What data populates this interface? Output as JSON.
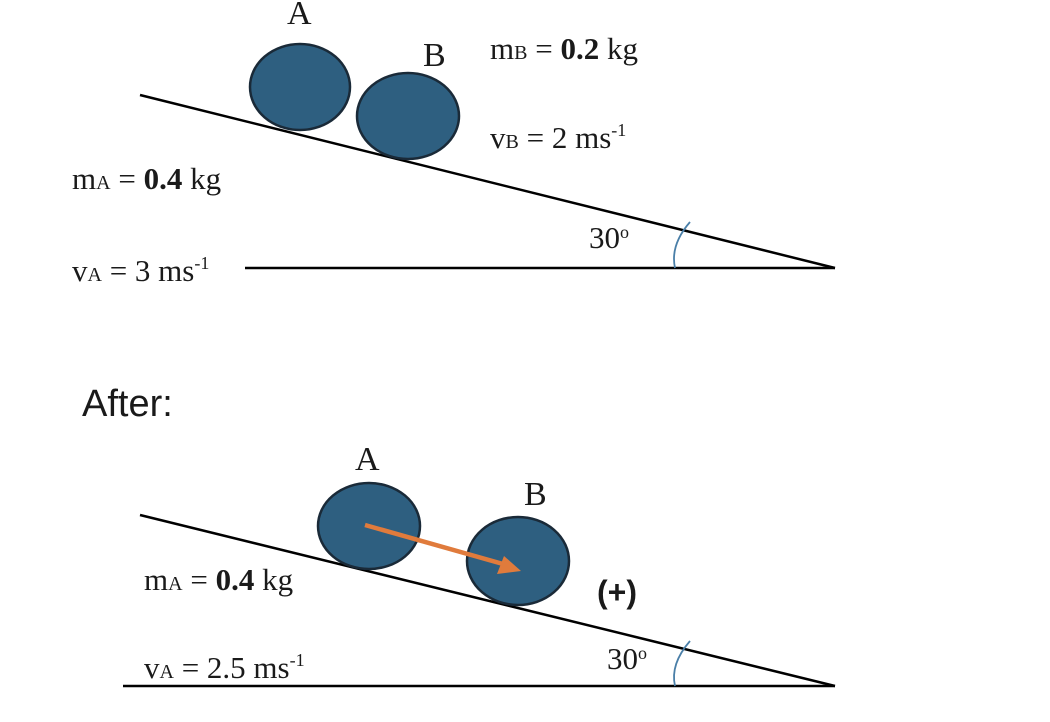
{
  "before": {
    "ball_a_label": "A",
    "ball_b_label": "B",
    "mass_b": {
      "symbol": "m",
      "subscript": "B",
      "equals": " = ",
      "value": "0.2",
      "unit": " kg"
    },
    "velocity_b": {
      "symbol": "v",
      "subscript": "B",
      "equals": " = 2 ms",
      "superscript": "-1"
    },
    "mass_a": {
      "symbol": "m",
      "subscript": "A",
      "equals": " = ",
      "value": "0.4",
      "unit": " kg"
    },
    "velocity_a": {
      "symbol": "v",
      "subscript": "A",
      "equals": " = 3 ms",
      "superscript": "-1"
    },
    "angle": {
      "value": "30",
      "degree": "o"
    }
  },
  "after_heading": "After:",
  "after": {
    "ball_a_label": "A",
    "ball_b_label": "B",
    "mass_a": {
      "symbol": "m",
      "subscript": "A",
      "equals": " = ",
      "value": "0.4",
      "unit": " kg"
    },
    "velocity_a": {
      "symbol": "v",
      "subscript": "A",
      "equals": " = 2.5 ms",
      "superscript": "-1"
    },
    "direction_sign": "(+)",
    "angle": {
      "value": "30",
      "degree": "o"
    }
  },
  "colors": {
    "ball_fill": "#2e5f80",
    "ball_stroke": "#1a2a38",
    "arrow": "#e07b3c",
    "angle_arc": "#4a7fa8",
    "line": "#000000"
  }
}
